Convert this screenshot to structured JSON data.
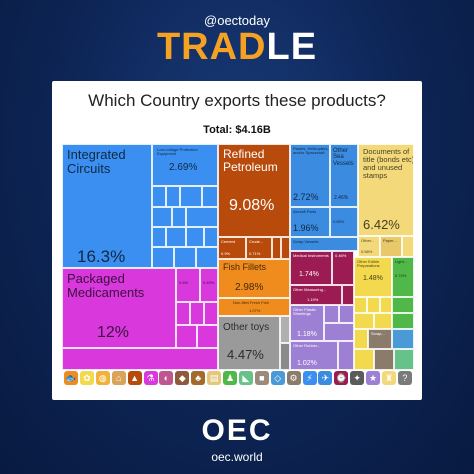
{
  "header": {
    "handle": "@oectoday",
    "brand_part1": "TRAD",
    "brand_part2": "LE"
  },
  "card": {
    "question": "Which Country exports these products?",
    "total": "Total: $4.16B"
  },
  "colors": {
    "electronics_blue": "#3a8ff0",
    "machinery_blue_dark": "#2a6fc9",
    "chemicals_magenta": "#d838dc",
    "minerals_orange": "#b84a0c",
    "transport_blue": "#3b8be0",
    "arts_yellow": "#f3d97a",
    "instruments_maroon": "#9b1b52",
    "animal_orange": "#f08b1e",
    "textile_green": "#4fb848",
    "misc_purple": "#9d7fd3",
    "vegetable_yellow": "#f2d94e",
    "other_toys_gray": "#9a9a9a"
  },
  "treemap": {
    "tiles": {
      "integrated_circuits": {
        "name": "Integrated Circuits",
        "pct": "16.3%"
      },
      "low_voltage": {
        "name": "Low-voltage Protection Equipment",
        "pct": "2.69%"
      },
      "packaged_medicaments": {
        "name": "Packaged Medicaments",
        "pct": "12%"
      },
      "med_small_1": {
        "pct": "0.6%"
      },
      "med_small_2": {
        "pct": "0.49%"
      },
      "refined_petroleum": {
        "name": "Refined Petroleum",
        "pct": "9.08%"
      },
      "cement": {
        "name": "Cement",
        "pct": "0.9%"
      },
      "crude": {
        "name": "Crude...",
        "pct": "0.71%"
      },
      "fish_fillets": {
        "name": "Fish Fillets",
        "pct": "2.98%"
      },
      "non_fillet_fish": {
        "name": "Non-fillet Fresh Fish",
        "pct": "1.07%"
      },
      "other_toys": {
        "name": "Other toys",
        "pct": "4.47%"
      },
      "planes": {
        "name": "Planes, Helicopters, and/or Spacecraft",
        "pct": "2.72%"
      },
      "other_sea_vessels": {
        "name": "Other Sea Vessels",
        "pct": "2.46%"
      },
      "aircraft_parts": {
        "name": "Aircraft Parts",
        "pct": "1.96%"
      },
      "scrap_vessels": {
        "name": "Scrap Vessels",
        "pct": "0.65%"
      },
      "documents": {
        "name": "Documents of title (bonds etc) and unused stamps",
        "pct": "6.42%"
      },
      "other_arts": {
        "name": "Other...",
        "pct": "0.58%"
      },
      "paper": {
        "name": "Paper..."
      },
      "medical_instruments": {
        "name": "Medical Instruments",
        "pct": "1.74%"
      },
      "instr_small": {
        "pct": "0.46%"
      },
      "other_measuring": {
        "name": "Other Measuring...",
        "pct": "1.19%"
      },
      "other_plastic": {
        "name": "Other Plastic Sheetings",
        "pct": "1.18%"
      },
      "other_rubber": {
        "name": "Other Rubber...",
        "pct": "1.02%"
      },
      "other_edible": {
        "name": "Other Edible Preparations",
        "pct": "1.48%"
      },
      "light_veg": {
        "name": "Light...",
        "pct": "0.74%"
      },
      "scrap_metal": {
        "name": "Scrap..."
      }
    }
  },
  "category_icons": [
    {
      "icon": "animal-icon",
      "color": "#f08b1e",
      "glyph": "🐟"
    },
    {
      "icon": "vegetable-icon",
      "color": "#f2d94e",
      "glyph": "✿"
    },
    {
      "icon": "fats-icon",
      "color": "#f2b23a",
      "glyph": "◍"
    },
    {
      "icon": "foodstuff-icon",
      "color": "#d9a35a",
      "glyph": "⌂"
    },
    {
      "icon": "minerals-icon",
      "color": "#b84a0c",
      "glyph": "▲"
    },
    {
      "icon": "chemicals-icon",
      "color": "#d838dc",
      "glyph": "⚗"
    },
    {
      "icon": "plastics-icon",
      "color": "#c0568f",
      "glyph": "◐"
    },
    {
      "icon": "hides-icon",
      "color": "#8d5a3c",
      "glyph": "◆"
    },
    {
      "icon": "wood-icon",
      "color": "#a36a2e",
      "glyph": "♣"
    },
    {
      "icon": "paper-icon",
      "color": "#e3c77a",
      "glyph": "▤"
    },
    {
      "icon": "textiles-icon",
      "color": "#4fb848",
      "glyph": "♟"
    },
    {
      "icon": "footwear-icon",
      "color": "#67c28a",
      "glyph": "◣"
    },
    {
      "icon": "stone-icon",
      "color": "#9c8b7a",
      "glyph": "■"
    },
    {
      "icon": "precious-metals-icon",
      "color": "#4a9ad8",
      "glyph": "◇"
    },
    {
      "icon": "metals-icon",
      "color": "#8b7b6b",
      "glyph": "⚙"
    },
    {
      "icon": "machines-icon",
      "color": "#3a8ff0",
      "glyph": "⚡"
    },
    {
      "icon": "transport-icon",
      "color": "#3b8be0",
      "glyph": "✈"
    },
    {
      "icon": "instruments-icon",
      "color": "#9b1b52",
      "glyph": "⌚"
    },
    {
      "icon": "weapons-icon",
      "color": "#5b5b5b",
      "glyph": "✦"
    },
    {
      "icon": "miscellaneous-icon",
      "color": "#9d7fd3",
      "glyph": "★"
    },
    {
      "icon": "arts-icon",
      "color": "#f3d97a",
      "glyph": "♜"
    },
    {
      "icon": "unspecified-icon",
      "color": "#7a7a7a",
      "glyph": "?"
    }
  ],
  "footer": {
    "logo": "OEC",
    "site": "oec.world"
  }
}
